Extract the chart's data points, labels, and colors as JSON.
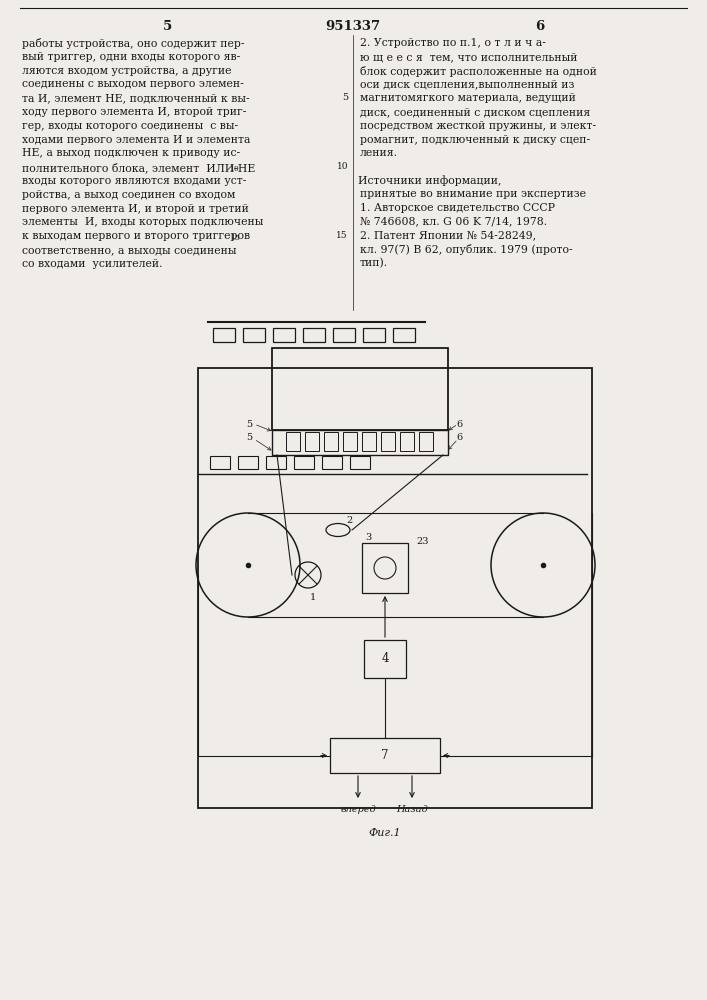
{
  "page_width": 7.07,
  "page_height": 10.0,
  "bg_color": "#f0ede8",
  "text_color": "#1a1a1a",
  "header_number": "951337",
  "left_col_number": "5",
  "right_col_number": "6",
  "left_text": [
    "работы устройства, оно содержит пер-",
    "вый триггер, одни входы которого яв-",
    "ляются входом устройства, а другие",
    "соединены с выходом первого элемен-",
    "та И, элемент НЕ, подключенный к вы-",
    "ходу первого элемента И, второй триг-",
    "гер, входы которого соединены  с вы-",
    "ходами первого элемента И и элемента",
    "НЕ, а выход подключен к приводу ис-",
    "полнительного блока, элемент  ИЛИ-НЕ",
    "входы которого являются входами уст-",
    "ройства, а выход соединен со входом",
    "первого элемента И, и второй и третий",
    "элементы  И, входы которых подключены",
    "к выходам первого и второго триггеров",
    "соответственно, а выходы соединены",
    "со входами  усилителей."
  ],
  "right_claim_text": [
    "2. Устройство по п.1, о т л и ч а-",
    "ю щ е е с я  тем, что исполнительный",
    "блок содержит расположенные на одной",
    "оси диск сцепления,выполненный из",
    "магнитомягкого материала, ведущий",
    "диск, соединенный с диском сцепления",
    "посредством жесткой пружины, и элект-",
    "ромагнит, подключенный к диску сцеп-",
    "ления."
  ],
  "right_text_header": "Источники информации,",
  "right_text": [
    "принятые во внимание при экспертизе",
    "1. Авторское свидетельство СССР",
    "№ 746608, кл. G 06 K 7/14, 1978.",
    "2. Патент Японии № 54-28249,",
    "кл. 97(7) В 62, опублик. 1979 (прото-",
    "тип)."
  ],
  "fig_label": "Фиг.1",
  "vpered_label": "вперед",
  "nazad_label": "Назад"
}
